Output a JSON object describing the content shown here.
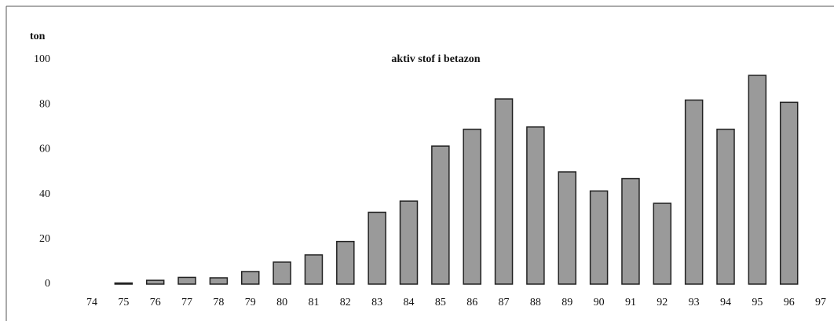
{
  "chart_data": {
    "type": "bar",
    "title": "aktiv stof i betazon",
    "y_label": "ton",
    "categories": [
      "74",
      "75",
      "76",
      "77",
      "78",
      "79",
      "80",
      "81",
      "82",
      "83",
      "84",
      "85",
      "86",
      "87",
      "88",
      "89",
      "90",
      "91",
      "92",
      "93",
      "94",
      "95",
      "96",
      "97"
    ],
    "values": [
      null,
      0.5,
      1.7,
      3,
      2.8,
      5.6,
      9.8,
      13,
      19,
      32,
      37,
      61.5,
      69,
      82.5,
      70,
      50,
      41.5,
      47,
      36,
      82,
      69,
      93,
      81,
      null
    ],
    "color": "#9a9a9a",
    "ylim": [
      0,
      100
    ],
    "yticks": [
      0,
      20,
      40,
      60,
      80,
      100
    ],
    "grid": false
  }
}
